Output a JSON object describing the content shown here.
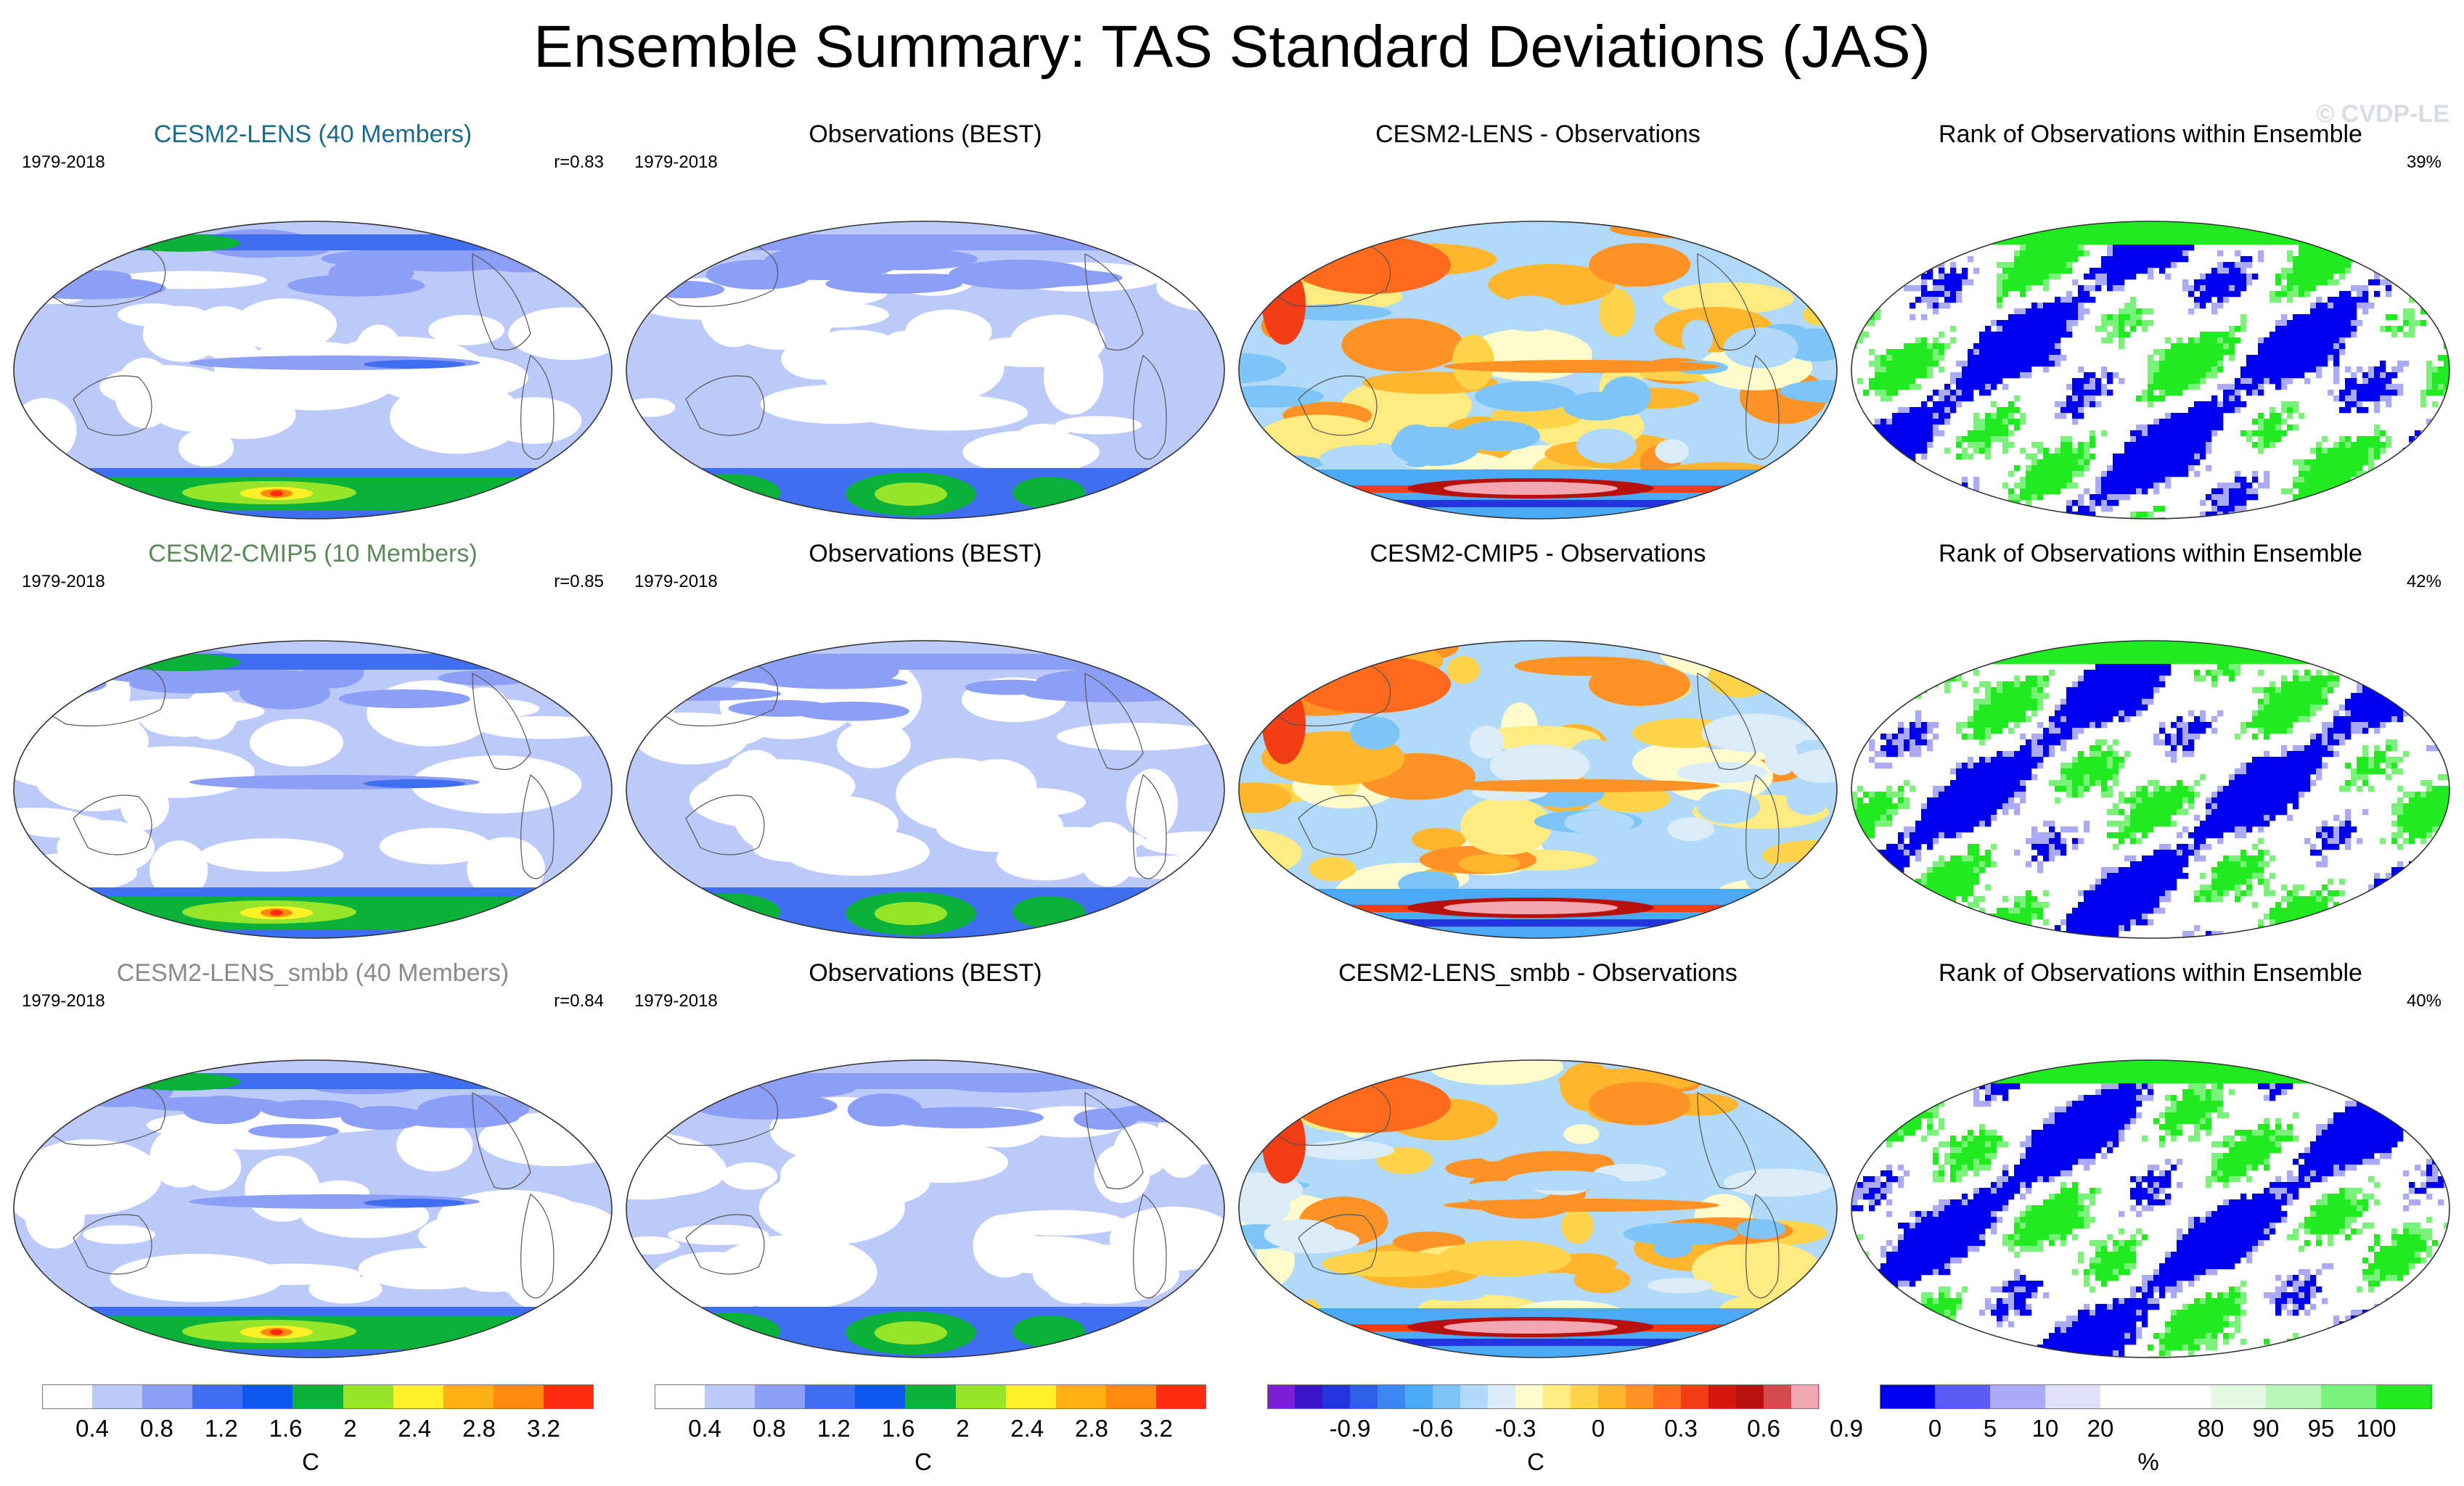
{
  "title": "Ensemble Summary: TAS Standard Deviations (JAS)",
  "watermark": "© CVDP-LE",
  "chart_data": {
    "type": "panel-map-grid",
    "rows": [
      {
        "model_title": "CESM2-LENS (40 Members)",
        "model_title_color": "#1a6a8a",
        "period": "1979-2018",
        "pattern_correlation": "r=0.83",
        "obs_title": "Observations (BEST)",
        "obs_period": "1979-2018",
        "diff_title": "CESM2-LENS - Observations",
        "rank_title": "Rank of Observations within Ensemble",
        "rank_percent": "39%"
      },
      {
        "model_title": "CESM2-CMIP5 (10 Members)",
        "model_title_color": "#5a8a5a",
        "period": "1979-2018",
        "pattern_correlation": "r=0.85",
        "obs_title": "Observations (BEST)",
        "obs_period": "1979-2018",
        "diff_title": "CESM2-CMIP5 - Observations",
        "rank_title": "Rank of Observations within Ensemble",
        "rank_percent": "42%"
      },
      {
        "model_title": "CESM2-LENS_smbb (40 Members)",
        "model_title_color": "#8a8a8a",
        "period": "1979-2018",
        "pattern_correlation": "r=0.84",
        "obs_title": "Observations (BEST)",
        "obs_period": "1979-2018",
        "diff_title": "CESM2-LENS_smbb - Observations",
        "rank_title": "Rank of Observations within Ensemble",
        "rank_percent": "40%"
      }
    ],
    "colorbars": [
      {
        "name": "stddev-model",
        "unit": "C",
        "colors": [
          "#ffffff",
          "#bccafa",
          "#8c9ef5",
          "#3f6ff0",
          "#0f57f0",
          "#0bb23a",
          "#96e52a",
          "#fff028",
          "#ffb114",
          "#ff8a0c",
          "#ff2a12"
        ],
        "ticks": [
          "0.4",
          "0.8",
          "1.2",
          "1.6",
          "2",
          "2.4",
          "2.8",
          "3.2"
        ]
      },
      {
        "name": "stddev-obs",
        "unit": "C",
        "colors": [
          "#ffffff",
          "#bccafa",
          "#8c9ef5",
          "#3f6ff0",
          "#0f57f0",
          "#0bb23a",
          "#96e52a",
          "#fff028",
          "#ffb114",
          "#ff8a0c",
          "#ff2a12"
        ],
        "ticks": [
          "0.4",
          "0.8",
          "1.2",
          "1.6",
          "2",
          "2.4",
          "2.8",
          "3.2"
        ]
      },
      {
        "name": "difference",
        "unit": "C",
        "colors": [
          "#7a1fd6",
          "#3a16c8",
          "#2233e0",
          "#2f5fe8",
          "#3d86f0",
          "#4aaaf5",
          "#7ec5f7",
          "#b0daf8",
          "#d9ecf7",
          "#fffccc",
          "#ffeb80",
          "#ffd34a",
          "#ffb52e",
          "#ff9224",
          "#ff6a1c",
          "#f23e16",
          "#d5160c",
          "#b8100c",
          "#d44a4a",
          "#f2a8b0"
        ],
        "ticks": [
          "-0.9",
          "-0.6",
          "-0.3",
          "0",
          "0.3",
          "0.6",
          "0.9"
        ]
      },
      {
        "name": "rank",
        "unit": "%",
        "colors": [
          "#0000f0",
          "#5a5af5",
          "#aaaaf8",
          "#e0e0fa",
          "#ffffff",
          "#ffffff",
          "#e2fae2",
          "#b6f6b6",
          "#7af27a",
          "#20ea20"
        ],
        "ticks": [
          "0",
          "5",
          "10",
          "20",
          "80",
          "90",
          "95",
          "100"
        ]
      }
    ]
  }
}
